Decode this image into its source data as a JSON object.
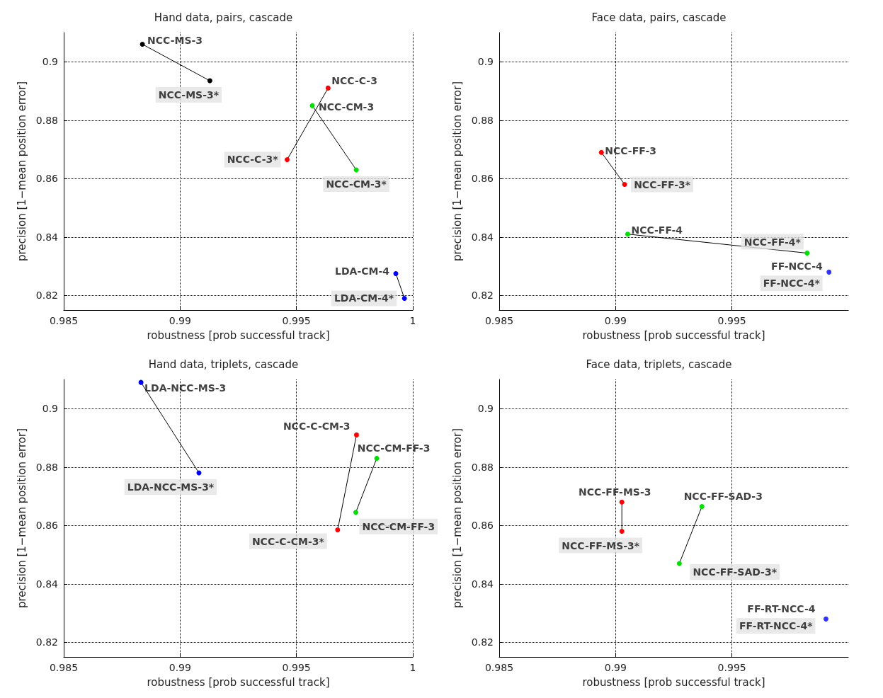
{
  "chart_data": [
    {
      "type": "line",
      "title": "Hand data, pairs, cascade",
      "xlabel": "robustness [prob successful track]",
      "ylabel": "precision [1−mean position error]",
      "xlim": [
        0.985,
        1
      ],
      "xticks": [
        0.985,
        0.99,
        0.995,
        1
      ],
      "ylim": [
        0.815,
        0.91
      ],
      "yticks": [
        0.82,
        0.84,
        0.86,
        0.88,
        0.9
      ],
      "grid": true,
      "marker": "circle",
      "series": [
        {
          "color": "#000000",
          "x": [
            0.98838,
            0.99128
          ],
          "values": [
            0.906,
            0.8935
          ]
        },
        {
          "color": "#ff0000",
          "x": [
            0.99636,
            0.9946
          ],
          "values": [
            0.891,
            0.8665
          ]
        },
        {
          "color": "#00e000",
          "x": [
            0.99568,
            0.99757
          ],
          "values": [
            0.885,
            0.863
          ]
        },
        {
          "color": "#0000ff",
          "x": [
            0.99927,
            0.99964
          ],
          "values": [
            0.8275,
            0.819
          ]
        }
      ],
      "annotations": [
        {
          "text": "NCC-MS-3",
          "x": 0.98838,
          "y": 0.906
        },
        {
          "text": "NCC-MS-3*",
          "x": 0.99128,
          "y": 0.8935
        },
        {
          "text": "NCC-C-3",
          "x": 0.99636,
          "y": 0.891
        },
        {
          "text": "NCC-C-3*",
          "x": 0.9946,
          "y": 0.8665
        },
        {
          "text": "NCC-CM-3",
          "x": 0.99568,
          "y": 0.885
        },
        {
          "text": "NCC-CM-3*",
          "x": 0.99757,
          "y": 0.863
        },
        {
          "text": "LDA-CM-4",
          "x": 0.99927,
          "y": 0.8275
        },
        {
          "text": "LDA-CM-4*",
          "x": 0.99964,
          "y": 0.819
        }
      ]
    },
    {
      "type": "line",
      "title": "Face data, pairs, cascade",
      "xlabel": "robustness [prob successful track]",
      "ylabel": "precision [1−mean position error]",
      "xlim": [
        0.985,
        1
      ],
      "xticks": [
        0.985,
        0.99,
        0.995
      ],
      "ylim": [
        0.815,
        0.91
      ],
      "yticks": [
        0.82,
        0.84,
        0.86,
        0.88,
        0.9
      ],
      "grid": true,
      "marker": "circle",
      "series": [
        {
          "color": "#ff0000",
          "x": [
            0.98939,
            0.99039
          ],
          "values": [
            0.869,
            0.858
          ]
        },
        {
          "color": "#00e000",
          "x": [
            0.99052,
            0.99823
          ],
          "values": [
            0.841,
            0.8345
          ]
        },
        {
          "type": "scatter",
          "color": "#0000ff",
          "x": [
            0.99917
          ],
          "values": [
            0.828
          ]
        }
      ],
      "annotations": [
        {
          "text": "NCC-FF-3",
          "x": 0.98939,
          "y": 0.869
        },
        {
          "text": "NCC-FF-3*",
          "x": 0.99039,
          "y": 0.858
        },
        {
          "text": "NCC-FF-4",
          "x": 0.99052,
          "y": 0.841
        },
        {
          "text": "NCC-FF-4*",
          "x": 0.99823,
          "y": 0.8345
        },
        {
          "text": "FF-NCC-4",
          "x": 0.99917,
          "y": 0.828
        },
        {
          "text": "FF-NCC-4*",
          "x": 0.99917,
          "y": 0.828
        }
      ]
    },
    {
      "type": "line",
      "title": "Hand data, triplets, cascade",
      "xlabel": "robustness [prob successful track]",
      "ylabel": "precision [1−mean position error]",
      "xlim": [
        0.985,
        1
      ],
      "xticks": [
        0.985,
        0.99,
        0.995,
        1
      ],
      "ylim": [
        0.815,
        0.91
      ],
      "yticks": [
        0.82,
        0.84,
        0.86,
        0.88,
        0.9
      ],
      "grid": true,
      "marker": "circle",
      "series": [
        {
          "color": "#0000ff",
          "x": [
            0.98832,
            0.99081
          ],
          "values": [
            0.909,
            0.878
          ]
        },
        {
          "color": "#ff0000",
          "x": [
            0.99758,
            0.99677
          ],
          "values": [
            0.891,
            0.8585
          ]
        },
        {
          "color": "#00e000",
          "x": [
            0.99845,
            0.99755
          ],
          "values": [
            0.883,
            0.8645
          ]
        }
      ],
      "annotations": [
        {
          "text": "LDA-NCC-MS-3",
          "x": 0.98832,
          "y": 0.909
        },
        {
          "text": "LDA-NCC-MS-3*",
          "x": 0.99081,
          "y": 0.878
        },
        {
          "text": "NCC-C-CM-3",
          "x": 0.99758,
          "y": 0.891
        },
        {
          "text": "NCC-C-CM-3*",
          "x": 0.99677,
          "y": 0.8585
        },
        {
          "text": "NCC-CM-FF-3",
          "x": 0.99845,
          "y": 0.883
        },
        {
          "text": "NCC-CM-FF-3",
          "x": 0.99755,
          "y": 0.8645
        }
      ]
    },
    {
      "type": "line",
      "title": "Face data, triplets, cascade",
      "xlabel": "robustness [prob successful track]",
      "ylabel": "precision [1−mean position error]",
      "xlim": [
        0.985,
        1
      ],
      "xticks": [
        0.985,
        0.99,
        0.995
      ],
      "ylim": [
        0.815,
        0.91
      ],
      "yticks": [
        0.82,
        0.84,
        0.86,
        0.88,
        0.9
      ],
      "grid": true,
      "marker": "circle",
      "series": [
        {
          "color": "#ff0000",
          "x": [
            0.99027,
            0.99027
          ],
          "values": [
            0.868,
            0.858
          ]
        },
        {
          "color": "#00e000",
          "x": [
            0.99371,
            0.99274
          ],
          "values": [
            0.8665,
            0.847
          ]
        },
        {
          "type": "scatter",
          "color": "#0000ff",
          "x": [
            0.99904
          ],
          "values": [
            0.828
          ]
        }
      ],
      "annotations": [
        {
          "text": "NCC-FF-MS-3",
          "x": 0.99027,
          "y": 0.868
        },
        {
          "text": "NCC-FF-MS-3*",
          "x": 0.99027,
          "y": 0.858
        },
        {
          "text": "NCC-FF-SAD-3",
          "x": 0.99371,
          "y": 0.8665
        },
        {
          "text": "NCC-FF-SAD-3*",
          "x": 0.99274,
          "y": 0.847
        },
        {
          "text": "FF-RT-NCC-4",
          "x": 0.99904,
          "y": 0.828
        },
        {
          "text": "FF-RT-NCC-4*",
          "x": 0.99904,
          "y": 0.828
        }
      ]
    }
  ]
}
